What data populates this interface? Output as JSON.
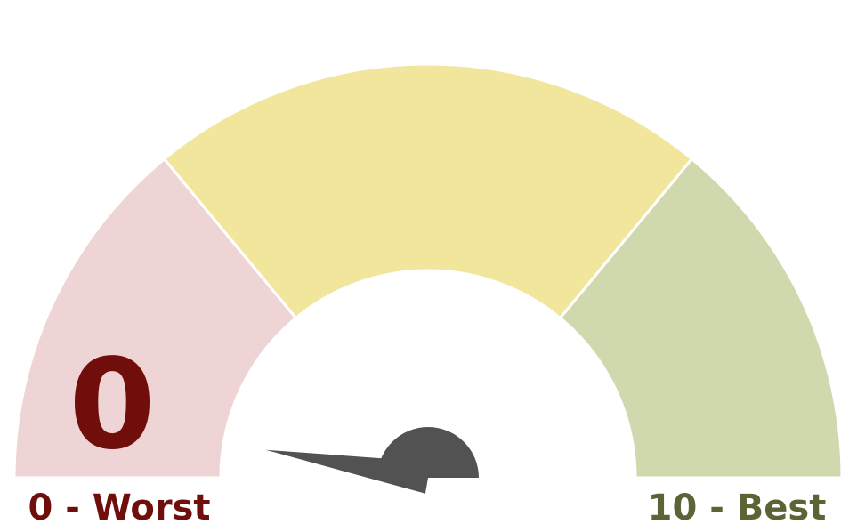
{
  "chart_data": {
    "type": "gauge",
    "min": 0,
    "max": 10,
    "value": 0,
    "value_label": "0",
    "min_label": "0 - Worst",
    "max_label": "10 - Best",
    "bands": [
      {
        "from": 0,
        "to": 2.8,
        "color": "#efd4d5"
      },
      {
        "from": 2.8,
        "to": 7.2,
        "color": "#f2e69c"
      },
      {
        "from": 7.2,
        "to": 10,
        "color": "#d0d8ae"
      }
    ],
    "colors": {
      "value_text": "#700e0b",
      "min_label": "#700e0b",
      "max_label": "#5b6434",
      "needle": "#525252",
      "separator": "#ffffff"
    }
  }
}
